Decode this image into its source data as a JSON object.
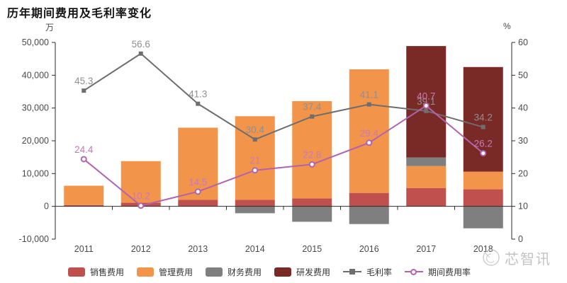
{
  "title": "历年期间费用及毛利率变化",
  "axes": {
    "left_unit": "万",
    "right_unit": "%",
    "left_min": -10000,
    "left_max": 50000,
    "left_tick_step": 10000,
    "left_ticks": [
      "50,000",
      "40,000",
      "30,000",
      "20,000",
      "10,000",
      "0",
      "-10,000"
    ],
    "right_min": 0,
    "right_max": 60,
    "right_tick_step": 10,
    "right_ticks": [
      "60",
      "50",
      "40",
      "30",
      "20",
      "10",
      "0"
    ],
    "axis_color": "#2b2b2b",
    "tick_label_color": "#4a4a4a"
  },
  "chart_data": {
    "type": "bar",
    "subtype": "stacked-bar-with-lines-dual-axis",
    "categories": [
      "2011",
      "2012",
      "2013",
      "2014",
      "2015",
      "2016",
      "2017",
      "2018"
    ],
    "bar_series": [
      {
        "id": "sales-expense",
        "name": "销售费用",
        "color": "#c0504d",
        "values": [
          400,
          1100,
          2000,
          2000,
          2400,
          4100,
          5600,
          5200
        ]
      },
      {
        "id": "admin-expense",
        "name": "管理费用",
        "color": "#f2954a",
        "values": [
          5900,
          12700,
          22000,
          25500,
          29700,
          37700,
          6700,
          5400
        ]
      },
      {
        "id": "finance-expense",
        "name": "财务费用",
        "color": "#7f7f7f",
        "values": [
          0,
          0,
          0,
          -2100,
          -4700,
          -5400,
          2600,
          -6700
        ]
      },
      {
        "id": "rd-expense",
        "name": "研发费用",
        "color": "#7a2a26",
        "values": [
          0,
          0,
          0,
          0,
          0,
          0,
          34000,
          31900
        ]
      }
    ],
    "line_series": [
      {
        "id": "gross-margin",
        "name": "毛利率",
        "axis": "right",
        "color": "#6e6e6e",
        "label_color": "#8f8f8f",
        "marker": "square",
        "values": [
          45.3,
          56.6,
          41.3,
          30.4,
          37.4,
          41.1,
          39.1,
          34.2
        ]
      },
      {
        "id": "period-expense-ratio",
        "name": "期间费用率",
        "axis": "right",
        "color": "#b163ae",
        "label_color": "#c779bc",
        "marker": "circle-open",
        "values": [
          24.4,
          10.2,
          14.5,
          21,
          22.8,
          29.4,
          40.7,
          26.2
        ]
      }
    ],
    "ylabel_left": "万",
    "ylabel_right": "%",
    "grid": false,
    "legend_position": "bottom"
  },
  "watermark": {
    "text": "芯智讯"
  }
}
